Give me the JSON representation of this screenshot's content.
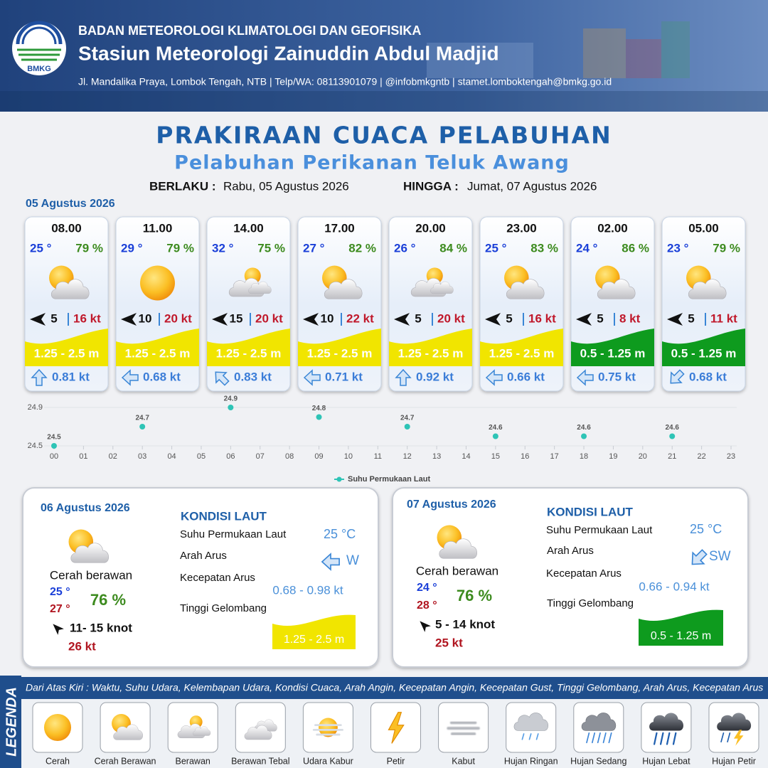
{
  "header": {
    "logo_text": "BMKG",
    "agency": "BADAN METEOROLOGI KLIMATOLOGI DAN GEOFISIKA",
    "station": "Stasiun Meteorologi Zainuddin Abdul Madjid",
    "contact": "Jl. Mandalika Praya, Lombok Tengah, NTB | Telp/WA: 08113901079 | @infobmkgntb | stamet.lomboktengah@bmkg.go.id"
  },
  "title": "PRAKIRAAN CUACA PELABUHAN",
  "subtitle": "Pelabuhan Perikanan Teluk Awang",
  "validity": {
    "from_label": "BERLAKU :",
    "from": "Rabu, 05 Agustus 2026",
    "to_label": "HINGGA :",
    "to": "Jumat, 07 Agustus 2026"
  },
  "day1": {
    "date": "05 Agustus 2026",
    "forecasts": [
      {
        "time": "08.00",
        "temperature": "25 °",
        "humidity": "79 %",
        "wind_speed": "5",
        "gust": "16 kt",
        "wave_height": "1.25 - 2.5 m",
        "current_speed": "0.81 kt"
      },
      {
        "time": "11.00",
        "temperature": "29 °",
        "humidity": "79 %",
        "wind_speed": "10",
        "gust": "20 kt",
        "wave_height": "1.25 - 2.5 m",
        "current_speed": "0.68 kt"
      },
      {
        "time": "14.00",
        "temperature": "32 °",
        "humidity": "75 %",
        "wind_speed": "15",
        "gust": "20 kt",
        "wave_height": "1.25 - 2.5 m",
        "current_speed": "0.83 kt"
      },
      {
        "time": "17.00",
        "temperature": "27 °",
        "humidity": "82 %",
        "wind_speed": "10",
        "gust": "22 kt",
        "wave_height": "1.25 - 2.5 m",
        "current_speed": "0.71 kt"
      },
      {
        "time": "20.00",
        "temperature": "26 °",
        "humidity": "84 %",
        "wind_speed": "5",
        "gust": "20 kt",
        "wave_height": "1.25 - 2.5 m",
        "current_speed": "0.92 kt"
      },
      {
        "time": "23.00",
        "temperature": "25 °",
        "humidity": "83 %",
        "wind_speed": "5",
        "gust": "16 kt",
        "wave_height": "1.25 - 2.5 m",
        "current_speed": "0.66 kt"
      },
      {
        "time": "02.00",
        "temperature": "24 °",
        "humidity": "86 %",
        "wind_speed": "5",
        "gust": "8 kt",
        "wave_height": "0.5 - 1.25 m",
        "current_speed": "0.75 kt"
      },
      {
        "time": "05.00",
        "temperature": "23 °",
        "humidity": "79 %",
        "wind_speed": "5",
        "gust": "11 kt",
        "wave_height": "0.5 - 1.25 m",
        "current_speed": "0.68 kt"
      }
    ]
  },
  "chart_data": {
    "type": "scatter",
    "x": [
      0,
      3,
      6,
      9,
      12,
      15,
      18,
      21
    ],
    "series": [
      {
        "name": "Suhu Permukaan Laut",
        "color": "#2ec4b6",
        "values": [
          24.5,
          24.7,
          24.9,
          24.8,
          24.7,
          24.6,
          24.6,
          24.6
        ]
      }
    ],
    "xlim": [
      0,
      23
    ],
    "xticks": [
      {
        "value": 0,
        "label": "00"
      },
      {
        "value": 1,
        "label": "01"
      },
      {
        "value": 2,
        "label": "02"
      },
      {
        "value": 3,
        "label": "03"
      },
      {
        "value": 4,
        "label": "04"
      },
      {
        "value": 5,
        "label": "05"
      },
      {
        "value": 6,
        "label": "06"
      },
      {
        "value": 7,
        "label": "07"
      },
      {
        "value": 8,
        "label": "08"
      },
      {
        "value": 9,
        "label": "09"
      },
      10,
      11,
      12,
      13,
      14,
      15,
      16,
      17,
      18,
      19,
      20,
      21,
      22,
      23
    ],
    "ylim": [
      24.5,
      24.9
    ],
    "yticks": [
      24.5,
      24.9
    ],
    "grid": true,
    "legend": "bottom"
  },
  "day2": {
    "date": "06 Agustus 2026",
    "condition": "Cerah berawan",
    "temp_min": "25 °",
    "temp_max": "27 °",
    "humidity": "76 %",
    "wind": "11- 15 knot",
    "gust": "26 kt",
    "sea_title": "KONDISI LAUT",
    "sst_label": "Suhu Permukaan Laut",
    "sst": "25 °C",
    "current_dir_label": "Arah Arus",
    "current_dir": "W",
    "current_speed_label": "Kecepatan Arus",
    "current_speed": "0.68 - 0.98 kt",
    "wave_label": "Tinggi Gelombang",
    "wave_height": "1.25 - 2.5 m"
  },
  "day3": {
    "date": "07 Agustus 2026",
    "condition": "Cerah berawan",
    "temp_min": "24 °",
    "temp_max": "28 °",
    "humidity": "76 %",
    "wind": "5 - 14 knot",
    "gust": "25 kt",
    "sea_title": "KONDISI LAUT",
    "sst_label": "Suhu Permukaan Laut",
    "sst": "25 °C",
    "current_dir_label": "Arah Arus",
    "current_dir": "SW",
    "current_speed_label": "Kecepatan Arus",
    "current_speed": "0.66 - 0.94 kt",
    "wave_label": "Tinggi Gelombang",
    "wave_height": "0.5 - 1.25 m"
  },
  "legend": {
    "title": "LEGENDA",
    "description": "Dari Atas Kiri : Waktu, Suhu Udara, Kelembapan Udara, Kondisi Cuaca, Arah Angin, Kecepatan Angin, Kecepatan Gust, Tinggi Gelombang, Arah Arus, Kecepatan Arus",
    "items": [
      "Cerah",
      "Cerah Berawan",
      "Berawan",
      "Berawan Tebal",
      "Udara Kabur",
      "Petir",
      "Kabut",
      "Hujan Ringan",
      "Hujan Sedang",
      "Hujan Lebat",
      "Hujan Petir"
    ]
  }
}
